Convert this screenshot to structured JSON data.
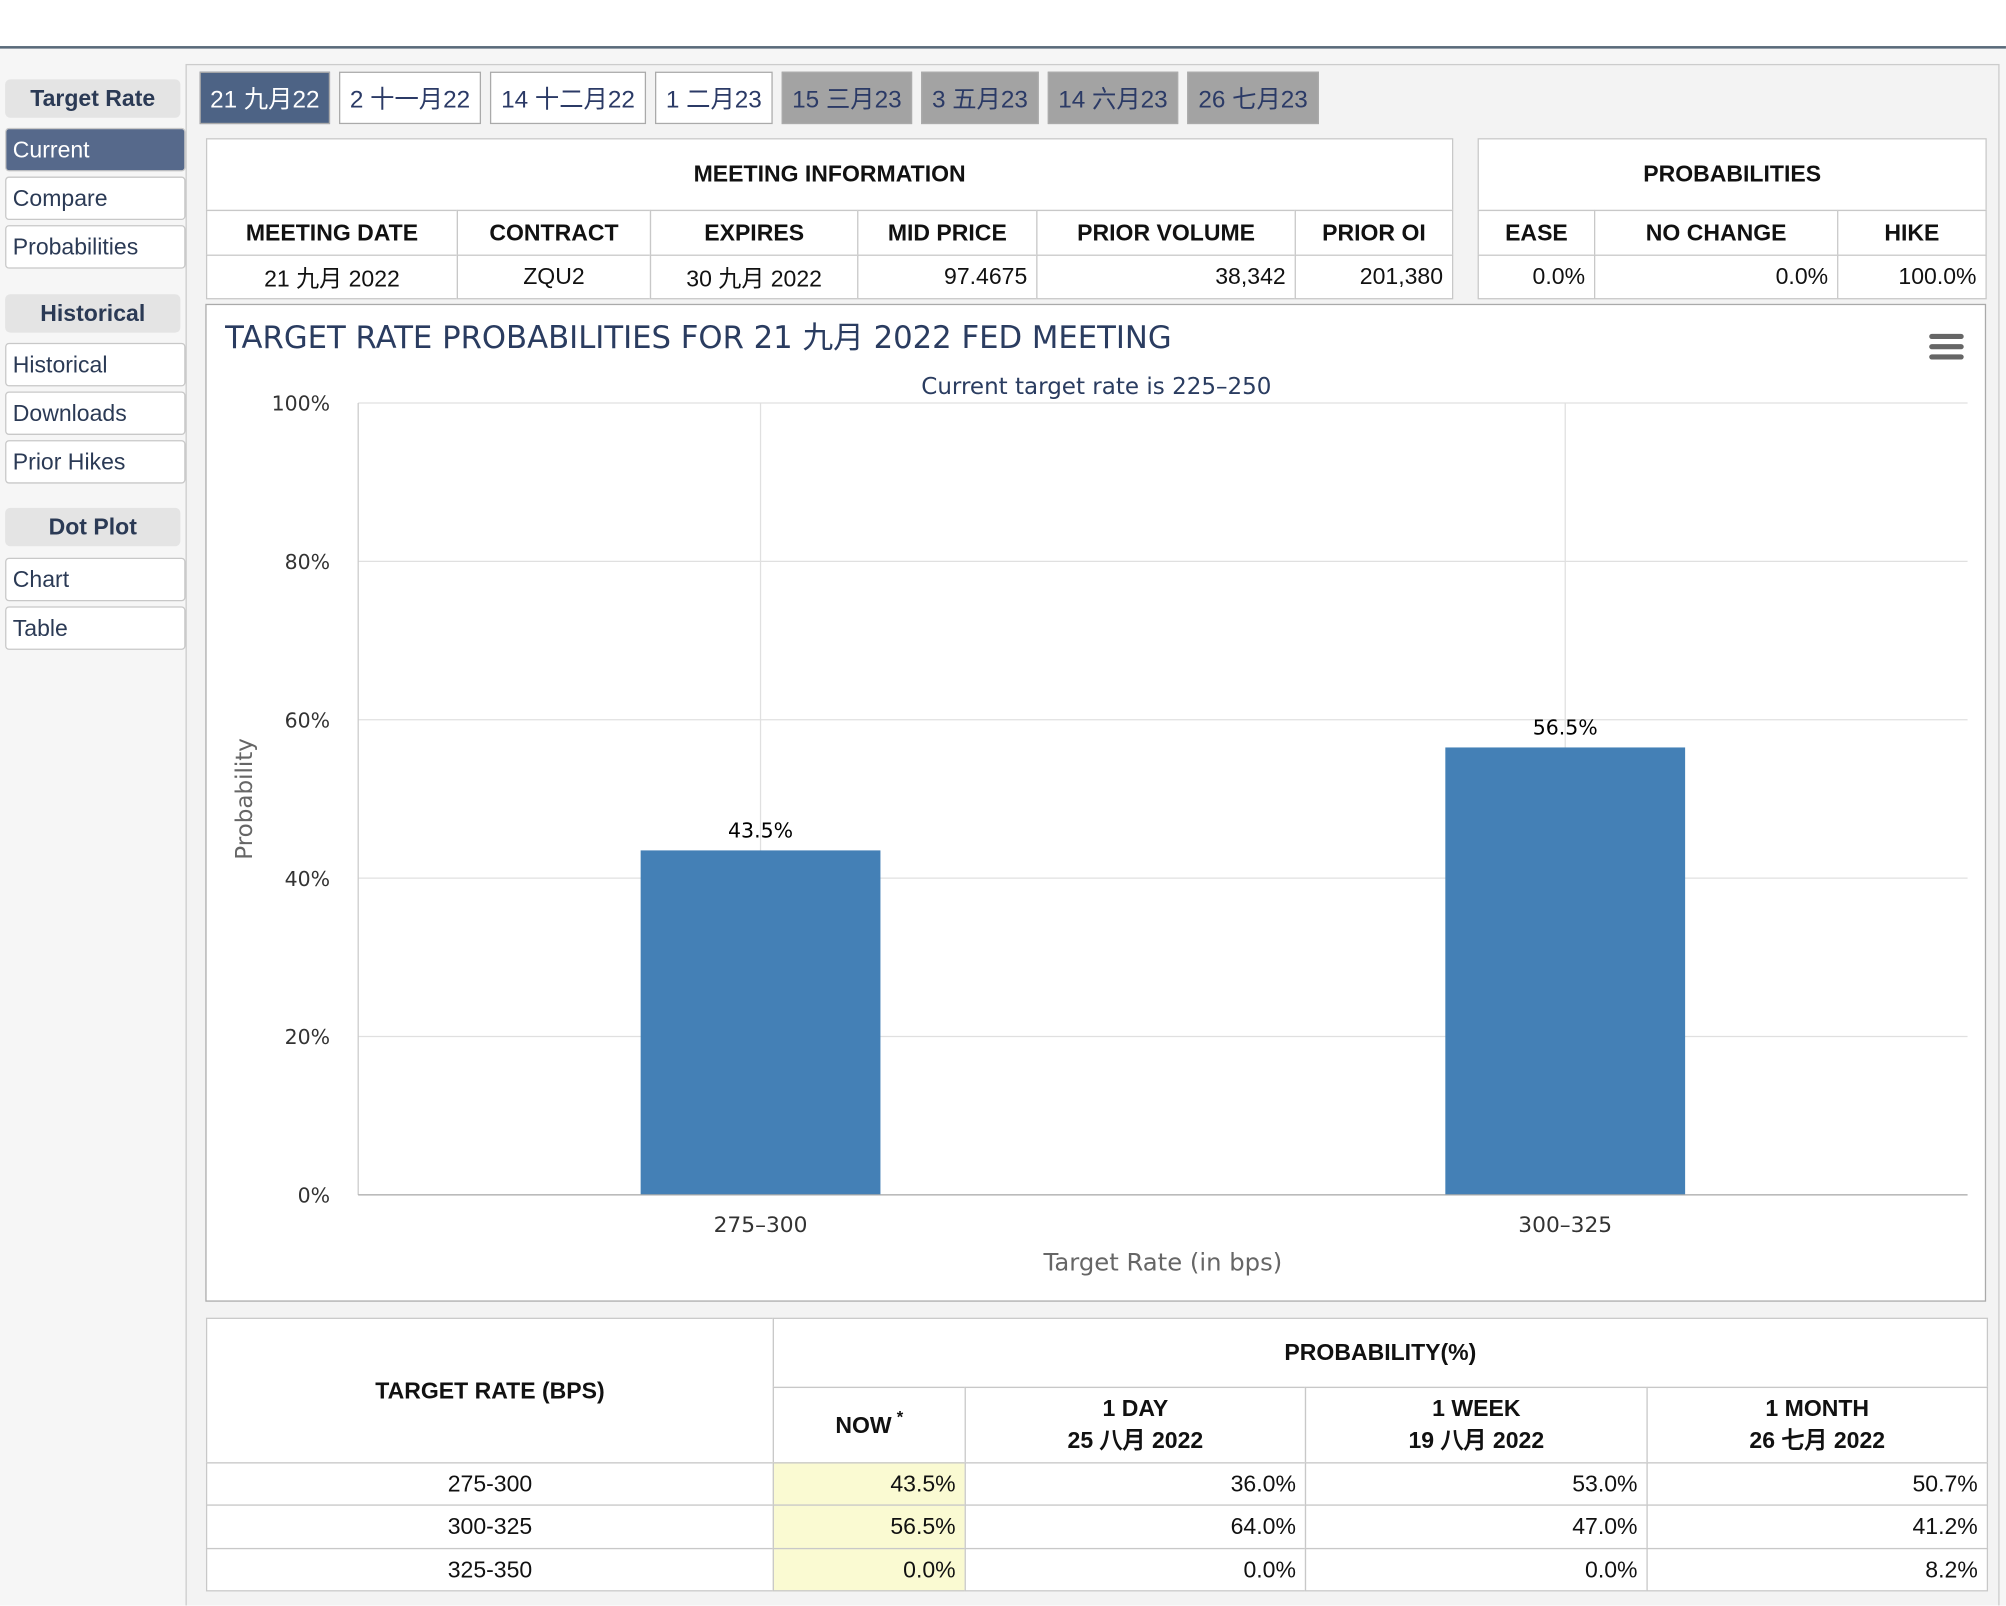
{
  "sidebar": [
    {
      "header": "Target Rate",
      "items": [
        "Current",
        "Compare",
        "Probabilities"
      ]
    },
    {
      "header": "Historical",
      "items": [
        "Historical",
        "Downloads",
        "Prior Hikes"
      ]
    },
    {
      "header": "Dot Plot",
      "items": [
        "Chart",
        "Table"
      ]
    }
  ],
  "tabs": [
    "21 九月22",
    "2 十一月22",
    "14 十二月22",
    "1 二月23",
    "15 三月23",
    "3 五月23",
    "14 六月23",
    "26 七月23"
  ],
  "meeting_info": {
    "title": "MEETING INFORMATION",
    "columns": [
      "MEETING DATE",
      "CONTRACT",
      "EXPIRES",
      "MID PRICE",
      "PRIOR VOLUME",
      "PRIOR OI"
    ],
    "row": [
      "21 九月 2022",
      "ZQU2",
      "30 九月 2022",
      "97.4675",
      "38,342",
      "201,380"
    ]
  },
  "probabilities": {
    "title": "PROBABILITIES",
    "columns": [
      "EASE",
      "NO CHANGE",
      "HIKE"
    ],
    "row": [
      "0.0%",
      "0.0%",
      "100.0%"
    ]
  },
  "chart_data": {
    "type": "bar",
    "title": "TARGET RATE PROBABILITIES FOR 21 九月 2022 FED MEETING",
    "subtitle": "Current target rate is 225–250",
    "x_label": "Target Rate (in bps)",
    "y_label": "Probability",
    "categories": [
      "275–300",
      "300–325"
    ],
    "values": [
      43.5,
      56.5
    ],
    "value_labels": [
      "43.5%",
      "56.5%"
    ],
    "color": "#4480b6",
    "ylim": [
      0,
      100
    ],
    "yticks": [
      {
        "value": 0,
        "label": "0%"
      },
      {
        "value": 20,
        "label": "20%"
      },
      {
        "value": 40,
        "label": "40%"
      },
      {
        "value": 60,
        "label": "60%"
      },
      {
        "value": 80,
        "label": "80%"
      },
      {
        "value": 100,
        "label": "100%"
      }
    ],
    "grid": true
  },
  "history_table": {
    "row_header": "TARGET RATE (BPS)",
    "group_header": "PROBABILITY(%)",
    "columns": [
      {
        "label": "NOW",
        "note": "*"
      },
      {
        "label": "1 DAY",
        "date": "25 八月 2022"
      },
      {
        "label": "1 WEEK",
        "date": "19 八月 2022"
      },
      {
        "label": "1 MONTH",
        "date": "26 七月 2022"
      }
    ],
    "rows": [
      [
        "275-300",
        "43.5%",
        "36.0%",
        "53.0%",
        "50.7%"
      ],
      [
        "300-325",
        "56.5%",
        "64.0%",
        "47.0%",
        "41.2%"
      ],
      [
        "325-350",
        "0.0%",
        "0.0%",
        "0.0%",
        "8.2%"
      ]
    ]
  }
}
